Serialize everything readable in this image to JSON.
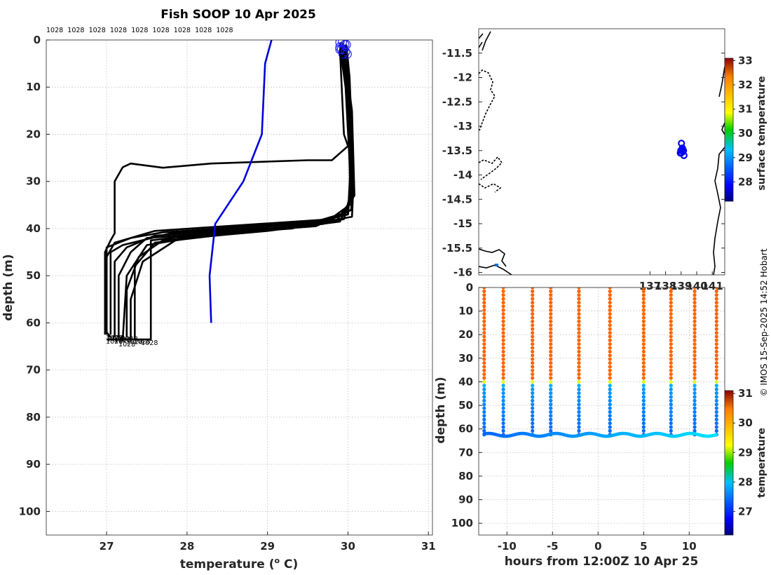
{
  "chart_data": [
    {
      "type": "line",
      "title": "Fish SOOP 10 Apr 2025",
      "xlabel": "temperature (",
      "xlabel_sup": "o",
      "xlabel_unit": " C)",
      "ylabel": "depth (m)",
      "xlim": [
        26.25,
        31.05
      ],
      "ylim": [
        105,
        0
      ],
      "xticks": [
        27,
        28,
        29,
        30,
        31
      ],
      "yticks": [
        0,
        10,
        20,
        30,
        40,
        50,
        60,
        70,
        80,
        90,
        100
      ],
      "top_labels": [
        "1028",
        "1028",
        "1028",
        "1028",
        "1028",
        "1028",
        "1028",
        "1028",
        "1028"
      ],
      "bottom_label": "1028",
      "climatology": {
        "name": "climatology",
        "color": "#0000dd",
        "points": [
          [
            29.05,
            0
          ],
          [
            28.97,
            5
          ],
          [
            28.93,
            20
          ],
          [
            28.7,
            30
          ],
          [
            28.35,
            39
          ],
          [
            28.28,
            50
          ],
          [
            28.3,
            60
          ]
        ]
      },
      "profiles": [
        [
          [
            29.9,
            0.5
          ],
          [
            29.95,
            4
          ],
          [
            30.02,
            20
          ],
          [
            30.06,
            28
          ],
          [
            30.04,
            36
          ],
          [
            29.8,
            38
          ],
          [
            27.6,
            40.5
          ],
          [
            27.4,
            41.5
          ],
          [
            27.1,
            43
          ],
          [
            27.0,
            46
          ],
          [
            27.0,
            62
          ],
          [
            27.05,
            63
          ]
        ],
        [
          [
            29.93,
            0.5
          ],
          [
            29.96,
            5
          ],
          [
            30.05,
            25
          ],
          [
            30.0,
            36.5
          ],
          [
            29.6,
            38.5
          ],
          [
            27.7,
            40.8
          ],
          [
            27.3,
            42
          ],
          [
            27.0,
            44
          ],
          [
            27.0,
            62.5
          ]
        ],
        [
          [
            29.96,
            1
          ],
          [
            30.0,
            6
          ],
          [
            30.05,
            27
          ],
          [
            30.0,
            37
          ],
          [
            29.5,
            39
          ],
          [
            27.8,
            41
          ],
          [
            27.2,
            43.5
          ],
          [
            27.05,
            45
          ],
          [
            27.05,
            62.5
          ]
        ],
        [
          [
            29.98,
            1
          ],
          [
            30.02,
            8
          ],
          [
            30.07,
            30
          ],
          [
            30.05,
            37.5
          ],
          [
            29.4,
            39.5
          ],
          [
            27.6,
            41.5
          ],
          [
            27.25,
            44
          ],
          [
            27.1,
            47
          ],
          [
            27.1,
            63
          ]
        ],
        [
          [
            29.9,
            1.5
          ],
          [
            29.97,
            10
          ],
          [
            30.04,
            32
          ],
          [
            29.95,
            38
          ],
          [
            29.2,
            40
          ],
          [
            27.5,
            42
          ],
          [
            27.3,
            45
          ],
          [
            27.15,
            50
          ],
          [
            27.15,
            63
          ]
        ],
        [
          [
            29.92,
            2
          ],
          [
            30.0,
            12
          ],
          [
            30.03,
            34
          ],
          [
            29.9,
            38.5
          ],
          [
            29.0,
            40.5
          ],
          [
            27.7,
            42.5
          ],
          [
            27.4,
            46
          ],
          [
            27.25,
            53
          ],
          [
            27.25,
            63
          ]
        ],
        [
          [
            29.95,
            2
          ],
          [
            30.05,
            15
          ],
          [
            30.08,
            33
          ],
          [
            29.85,
            38.5
          ],
          [
            28.8,
            40.5
          ],
          [
            27.9,
            42
          ],
          [
            27.45,
            47
          ],
          [
            27.3,
            55
          ],
          [
            27.3,
            63.5
          ]
        ],
        [
          [
            29.97,
            2.5
          ],
          [
            30.03,
            18
          ],
          [
            30.02,
            35
          ],
          [
            29.7,
            39
          ],
          [
            28.6,
            41
          ],
          [
            27.6,
            43
          ],
          [
            27.35,
            48
          ],
          [
            27.35,
            63.5
          ]
        ],
        [
          [
            29.99,
            3
          ],
          [
            30.06,
            22
          ],
          [
            30.05,
            36
          ],
          [
            29.6,
            39.5
          ],
          [
            28.4,
            41
          ],
          [
            27.5,
            43.5
          ],
          [
            27.25,
            50
          ],
          [
            27.2,
            63.5
          ]
        ],
        [
          [
            29.94,
            3
          ],
          [
            30.04,
            24
          ],
          [
            30.0,
            37
          ],
          [
            29.3,
            40
          ],
          [
            28.0,
            41.5
          ],
          [
            27.8,
            42
          ],
          [
            27.55,
            42.5
          ],
          [
            27.55,
            63.5
          ],
          [
            27.0,
            63.5
          ]
        ],
        [
          [
            29.9,
            2
          ],
          [
            29.95,
            20
          ],
          [
            30.0,
            22.5
          ],
          [
            29.8,
            25.5
          ],
          [
            29.5,
            25.5
          ],
          [
            28.3,
            26.2
          ],
          [
            27.7,
            27.1
          ],
          [
            27.3,
            26.2
          ],
          [
            27.2,
            27
          ],
          [
            27.15,
            28.5
          ],
          [
            27.1,
            30
          ],
          [
            27.1,
            41
          ],
          [
            27.05,
            42.5
          ],
          [
            26.98,
            45
          ],
          [
            26.98,
            62.5
          ]
        ]
      ]
    },
    {
      "type": "scatter",
      "xlabel": "",
      "ylabel": "",
      "xlim": [
        126.0,
        141.8
      ],
      "ylim": [
        -16.05,
        -11.0
      ],
      "xticks": [
        137,
        138,
        139,
        140,
        141
      ],
      "xtick_labels": [
        "137",
        "138",
        "139",
        "140",
        "141"
      ],
      "yticks": [
        -11.5,
        -12,
        -12.5,
        -13,
        -13.5,
        -14,
        -14.5,
        -15,
        -15.5,
        -16
      ],
      "ytick_labels": [
        "-11.5",
        "-12",
        "-12.5",
        "-13",
        "-13.5",
        "-14",
        "-14.5",
        "-15",
        "-15.5",
        "-16"
      ],
      "points": [
        [
          139.02,
          -13.35
        ],
        [
          138.98,
          -13.5
        ],
        [
          139.05,
          -13.48
        ],
        [
          139.12,
          -13.52
        ],
        [
          139.18,
          -13.6
        ],
        [
          139.0,
          -13.55
        ],
        [
          139.08,
          -13.45
        ],
        [
          139.15,
          -13.5
        ],
        [
          138.95,
          -13.55
        ]
      ],
      "colorbar": {
        "label": "surface temperature",
        "range": [
          27.2,
          33.1
        ],
        "ticks": [
          28,
          29,
          30,
          31,
          32,
          33
        ]
      }
    },
    {
      "type": "scatter",
      "xlabel": "hours from 12:00Z 10 Apr 25",
      "ylabel": "depth (m)",
      "xlim": [
        -13.1,
        13.9
      ],
      "ylim": [
        105,
        0
      ],
      "xticks": [
        -10,
        -5,
        0,
        5,
        10
      ],
      "yticks": [
        0,
        10,
        20,
        30,
        40,
        50,
        60,
        70,
        80,
        90,
        100
      ],
      "casts_hours": [
        -12.5,
        -10.4,
        -7.2,
        -5.2,
        -2.1,
        1.3,
        5.0,
        8.0,
        10.6,
        13.0
      ],
      "thermocline_depth_m": 40,
      "surface_temp": 30.0,
      "deep_temp": 27.3,
      "bottom_depth_m": 62.5,
      "colorbar": {
        "label": "temperature",
        "range": [
          26.2,
          31.1
        ],
        "ticks": [
          27,
          28,
          29,
          30,
          31
        ]
      }
    }
  ],
  "credit": "© IMOS 15-Sep-2025 14:52 Hobart"
}
